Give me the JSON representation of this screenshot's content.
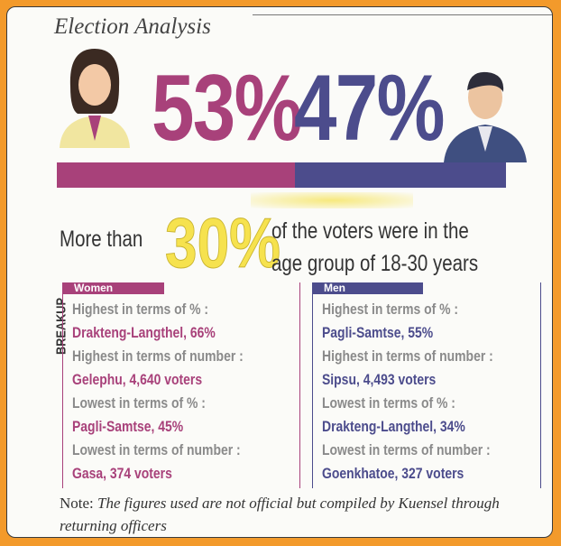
{
  "title": "Election Analysis",
  "shares": [
    {
      "value": 53,
      "label": "53%"
    },
    {
      "value": 47,
      "label": "47%"
    }
  ],
  "age_note": {
    "prefix": "More than",
    "highlight": "30%",
    "line1": "of the voters were in the",
    "line2": "age group of 18-30 years"
  },
  "breakup": {
    "heading": "BREAKUP",
    "groups": [
      {
        "name": "Women",
        "items": [
          {
            "label": "Highest in terms of % :",
            "value": "Drakteng-Langthel, 66%"
          },
          {
            "label": "Highest in terms of number :",
            "value": "Gelephu, 4,640 voters"
          },
          {
            "label": "Lowest in terms of % :",
            "value": "Pagli-Samtse, 45%"
          },
          {
            "label": "Lowest in terms of number :",
            "value": "Gasa, 374 voters"
          }
        ]
      },
      {
        "name": "Men",
        "items": [
          {
            "label": "Highest in terms of % :",
            "value": "Pagli-Samtse, 55%"
          },
          {
            "label": "Highest in terms of number :",
            "value": "Sipsu, 4,493 voters"
          },
          {
            "label": "Lowest in terms of % :",
            "value": "Drakteng-Langthel, 34%"
          },
          {
            "label": "Lowest in terms of number :",
            "value": "Goenkhatoe, 327 voters"
          }
        ]
      }
    ]
  },
  "note": {
    "lead": "Note:",
    "text": "The figures used are not official but compiled by Kuensel through returning officers"
  }
}
